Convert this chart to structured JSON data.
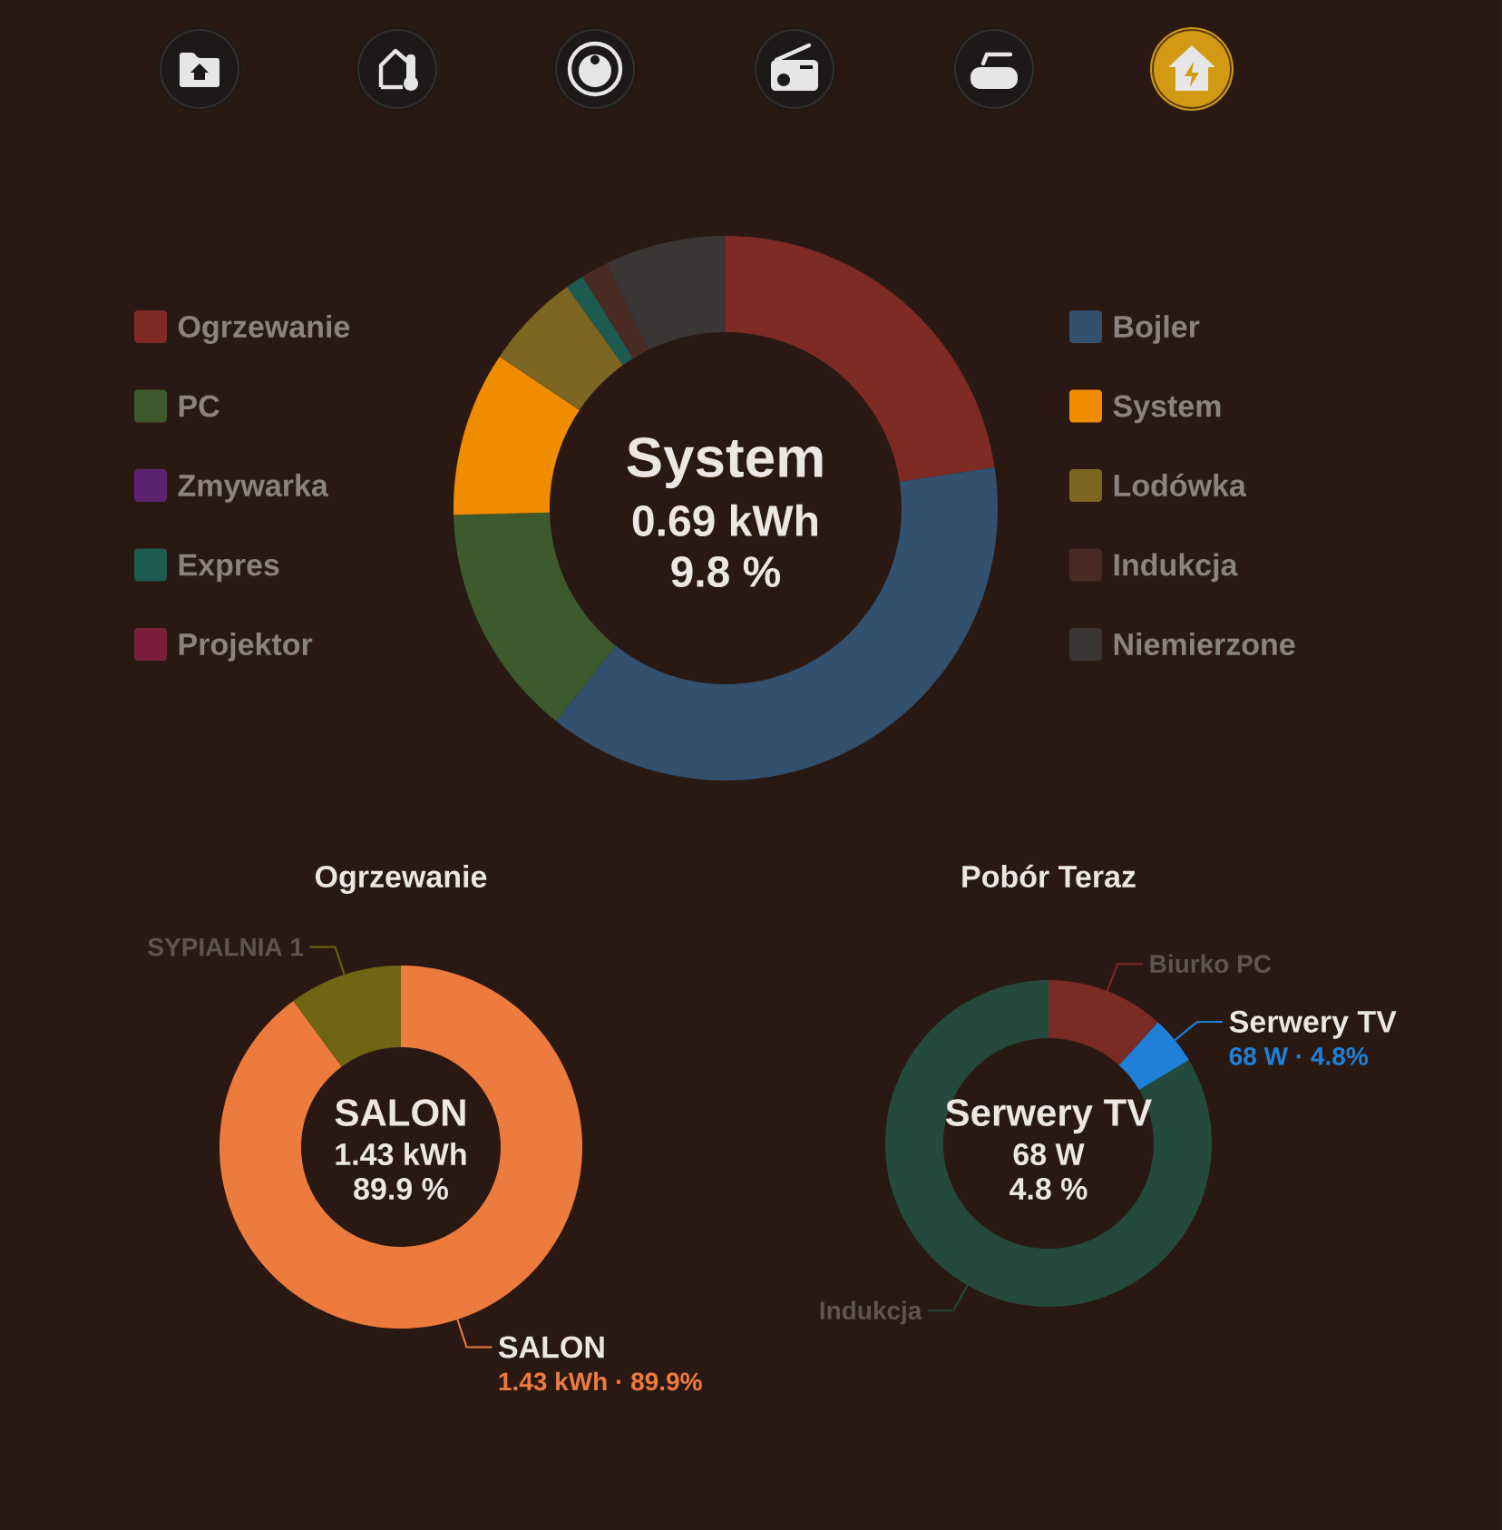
{
  "chart_data": [
    {
      "type": "donut",
      "categories": [
        "Ogrzewanie",
        "Bojler",
        "PC",
        "System",
        "Zmywarka",
        "Lodówka",
        "Expres",
        "Indukcja",
        "Projektor",
        "Niemierzone"
      ],
      "values": [
        22.6,
        38.1,
        13.9,
        9.8,
        0,
        5.7,
        1.1,
        1.6,
        0,
        7.2
      ],
      "colors": [
        "#7e2b25",
        "#33506f",
        "#3c5a2e",
        "#f08c00",
        "#5a2470",
        "#7d6622",
        "#1d5a50",
        "#4a2b24",
        "#7a1e3c",
        "#3b3636"
      ],
      "legend": "left",
      "annotations": [
        "System",
        "0.69 kWh",
        "9.8 %"
      ]
    },
    {
      "type": "donut",
      "title": "Ogrzewanie",
      "categories": [
        "SALON",
        "SYPIALNIA 1"
      ],
      "values": [
        89.9,
        10.1
      ],
      "colors": [
        "#ee7b3e",
        "#6f6512"
      ],
      "value_labels": [
        "1.43 kWh · 89.9%",
        null
      ],
      "annotations": [
        "SALON",
        "1.43 kWh",
        "89.9 %"
      ]
    },
    {
      "type": "donut",
      "title": "Pobór Teraz",
      "categories": [
        "Biurko PC",
        "Serwery TV",
        "Indukcja"
      ],
      "values": [
        11.7,
        4.8,
        83.5
      ],
      "colors": [
        "#7a2b24",
        "#1f80d8",
        "#244a3d"
      ],
      "value_labels": [
        null,
        "68 W · 4.8%",
        null
      ],
      "annotations": [
        "Serwery TV",
        "68 W",
        "4.8 %"
      ]
    }
  ]
}
